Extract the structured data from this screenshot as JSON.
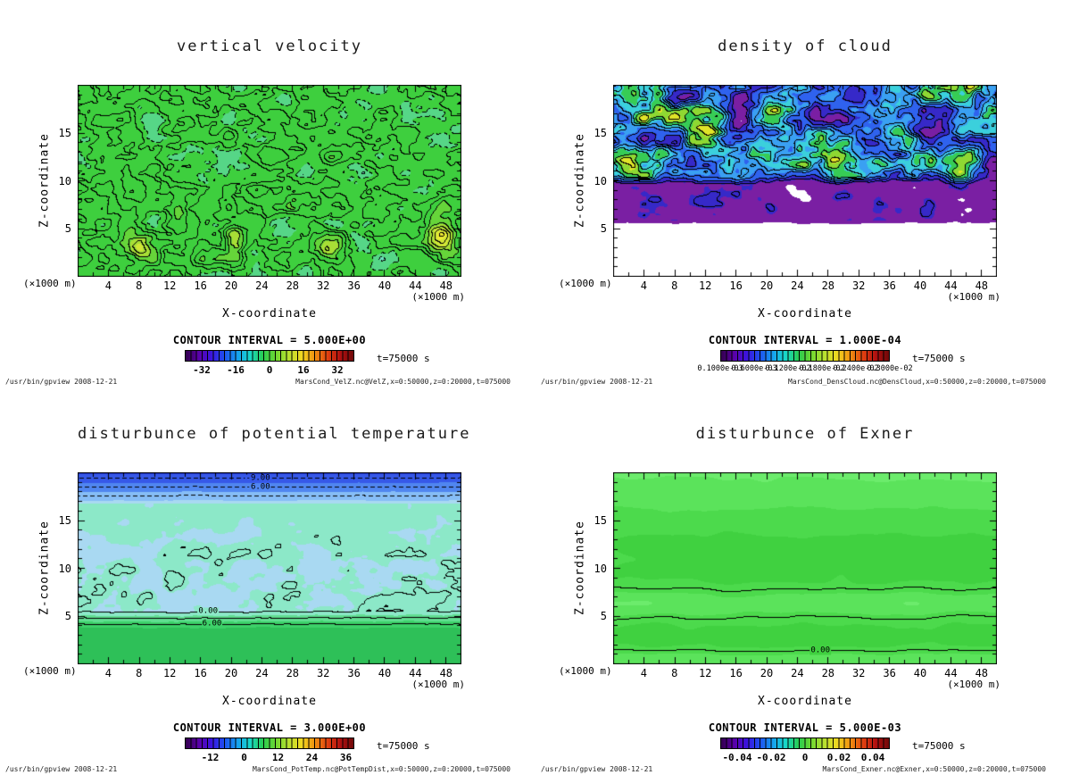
{
  "colorbar_palette": [
    "#33004d",
    "#5a00a8",
    "#3b14e0",
    "#1e50f0",
    "#16a0f0",
    "#18d8c8",
    "#28cc50",
    "#70d830",
    "#b8e030",
    "#f0d820",
    "#f09010",
    "#e04010",
    "#b01010",
    "#700808"
  ],
  "axis_style": {
    "x_minor": 2,
    "x_major": 4,
    "y_minor": 1,
    "y_major": 5
  },
  "chart_data": [
    {
      "type": "contour",
      "title": "vertical velocity",
      "xlabel": "X-coordinate",
      "ylabel": "Z-coordinate",
      "x_unit": "(×1000 m)",
      "y_unit": "(×1000 m)",
      "xlim": [
        0,
        50
      ],
      "ylim": [
        0,
        20
      ],
      "x_ticks": [
        4,
        8,
        12,
        16,
        20,
        24,
        28,
        32,
        36,
        40,
        44,
        48
      ],
      "y_ticks": [
        5,
        10,
        15
      ],
      "grid": false,
      "contour_interval": 5.0,
      "contour_interval_label": "CONTOUR INTERVAL = 5.000E+00",
      "time_label": "t=75000 s",
      "footer_left": "/usr/bin/gpview  2008-12-21",
      "source": "MarsCond_VelZ.nc@VelZ,x=0:50000,z=0:20000,t=075000",
      "value_range_estimate": [
        -35,
        35
      ],
      "field_summary": "Turbulent vertical-velocity field over whole domain, mostly -15..+15 with strong plumes to ~+30 near z=3-4 at x=8, 20, 33, 47; dense contours every 5, dashed where negative",
      "colorbar": {
        "ticks": [
          {
            "label": "-32",
            "pos": 0.1
          },
          {
            "label": "-16",
            "pos": 0.3
          },
          {
            "label": "0",
            "pos": 0.5
          },
          {
            "label": "16",
            "pos": 0.7
          },
          {
            "label": "32",
            "pos": 0.9
          }
        ]
      },
      "contour_labels": [],
      "render": {
        "contour_interval": 5,
        "dash_negative": true,
        "fill_levels": [
          [
            -10,
            "#6fe0c2"
          ],
          [
            -5,
            "#56d687"
          ],
          [
            10,
            "#3ecf3e"
          ],
          [
            16,
            "#66d53a"
          ],
          [
            22,
            "#a8de36"
          ],
          [
            28,
            "#d2e636"
          ],
          [
            999999,
            "#eeea33"
          ]
        ]
      }
    },
    {
      "type": "contour",
      "title": "density of cloud",
      "xlabel": "X-coordinate",
      "ylabel": "Z-coordinate",
      "x_unit": "(×1000 m)",
      "y_unit": "(×1000 m)",
      "xlim": [
        0,
        50
      ],
      "ylim": [
        0,
        20
      ],
      "x_ticks": [
        4,
        8,
        12,
        16,
        20,
        24,
        28,
        32,
        36,
        40,
        44,
        48
      ],
      "y_ticks": [
        5,
        10,
        15
      ],
      "grid": false,
      "contour_interval": 0.0001,
      "contour_interval_label": "CONTOUR INTERVAL = 1.000E-04",
      "time_label": "t=75000 s",
      "footer_left": "/usr/bin/gpview  2008-12-21",
      "source": "MarsCond_DensCloud.nc@DensCloud,x=0:50000,z=0:20000,t=075000",
      "value_range_estimate": [
        0.0001,
        0.003
      ],
      "field_summary": "Cloud density confined to z>5.5: low-density purple band z=6-10, scattered blue/cyan/green high-density cores (up to ~3e-3) between z=10 and 19, white cloud-free elsewhere",
      "colorbar": {
        "ticks": [
          {
            "label": "0.1000e-03",
            "pos": 0.0
          },
          {
            "label": "0.6000e-03",
            "pos": 0.2
          },
          {
            "label": "0.1200e-02",
            "pos": 0.4
          },
          {
            "label": "0.1800e-02",
            "pos": 0.6
          },
          {
            "label": "0.2400e-02",
            "pos": 0.8
          },
          {
            "label": "0.3000e-02",
            "pos": 1.0
          }
        ]
      },
      "contour_labels": [],
      "render": {
        "contour_interval": 0.115,
        "min_draw": 0.17,
        "dash_negative": false,
        "fill_levels": [
          [
            0.055,
            "#ffffff"
          ],
          [
            0.21,
            "#7a1fa3"
          ],
          [
            0.36,
            "#3629c8"
          ],
          [
            0.5,
            "#2f62ee"
          ],
          [
            0.62,
            "#3aa0f2"
          ],
          [
            0.72,
            "#3bd0dc"
          ],
          [
            0.82,
            "#37cc55"
          ],
          [
            0.9,
            "#8fd832"
          ],
          [
            999999,
            "#e0e428"
          ]
        ]
      }
    },
    {
      "type": "contour",
      "title": "disturbunce of potential temperature",
      "xlabel": "X-coordinate",
      "ylabel": "Z-coordinate",
      "x_unit": "(×1000 m)",
      "y_unit": "(×1000 m)",
      "xlim": [
        0,
        50
      ],
      "ylim": [
        0,
        20
      ],
      "x_ticks": [
        4,
        8,
        12,
        16,
        20,
        24,
        28,
        32,
        36,
        40,
        44,
        48
      ],
      "y_ticks": [
        5,
        10,
        15
      ],
      "grid": false,
      "contour_interval": 3.0,
      "contour_interval_label": "CONTOUR INTERVAL = 3.000E+00",
      "time_label": "t=75000 s",
      "footer_left": "/usr/bin/gpview  2008-12-21",
      "source": "MarsCond_PotTemp.nc@PotTempDist,x=0:50000,z=0:20000,t=075000",
      "value_range_estimate": [
        -13,
        8
      ],
      "field_summary": "Horizontally stratified disturbance: -9 and -6 dashed contours near z=18-19.5, near-zero pale interior with small pockets at z=5-9, solid 0.00 and 6.00 contours at z=4-5.5",
      "colorbar": {
        "ticks": [
          {
            "label": "-12",
            "pos": 0.15
          },
          {
            "label": "0",
            "pos": 0.35
          },
          {
            "label": "12",
            "pos": 0.55
          },
          {
            "label": "24",
            "pos": 0.75
          },
          {
            "label": "36",
            "pos": 0.95
          }
        ]
      },
      "contour_labels": [
        {
          "text": "-9.00",
          "fx": 0.47,
          "fy": 0.033,
          "bg": "#3658e8"
        },
        {
          "text": "-6.00",
          "fx": 0.47,
          "fy": 0.079,
          "bg": "#5086f0"
        },
        {
          "text": "0.00",
          "fx": 0.34,
          "fy": 0.727,
          "bg": "#8ce8c8"
        },
        {
          "text": "6.00",
          "fx": 0.35,
          "fy": 0.792,
          "bg": "#3dd169"
        }
      ],
      "render": {
        "contour_interval": 3,
        "dash_negative": true,
        "fill_levels": [
          [
            -10.5,
            "#2439cf"
          ],
          [
            -7.5,
            "#3658e8"
          ],
          [
            -4.5,
            "#5086f0"
          ],
          [
            -1.5,
            "#86bdf6"
          ],
          [
            -0.45,
            "#a9d9f2"
          ],
          [
            1.5,
            "#8ce8c8"
          ],
          [
            4.5,
            "#60dd90"
          ],
          [
            7.5,
            "#3dd169"
          ],
          [
            999999,
            "#2ec058"
          ]
        ]
      }
    },
    {
      "type": "contour",
      "title": "disturbunce of Exner",
      "xlabel": "X-coordinate",
      "ylabel": "Z-coordinate",
      "x_unit": "(×1000 m)",
      "y_unit": "(×1000 m)",
      "xlim": [
        0,
        50
      ],
      "ylim": [
        0,
        20
      ],
      "x_ticks": [
        4,
        8,
        12,
        16,
        20,
        24,
        28,
        32,
        36,
        40,
        44,
        48
      ],
      "y_ticks": [
        5,
        10,
        15
      ],
      "grid": false,
      "contour_interval": 0.005,
      "contour_interval_label": "CONTOUR INTERVAL = 5.000E-03",
      "time_label": "t=75000 s",
      "footer_left": "/usr/bin/gpview  2008-12-21",
      "source": "MarsCond_Exner.nc@Exner,x=0:50000,z=0:20000,t=075000",
      "value_range_estimate": [
        -0.002,
        0.002
      ],
      "field_summary": "Nearly uniform green Exner disturbance; 0.00 contour encloses a weak positive wavy band at z=5-7.5 and runs along z=1.4; faint lighter horizontal bands near top",
      "colorbar": {
        "ticks": [
          {
            "label": "-0.04",
            "pos": 0.1
          },
          {
            "label": "-0.02",
            "pos": 0.3
          },
          {
            "label": "0",
            "pos": 0.5
          },
          {
            "label": "0.02",
            "pos": 0.7
          },
          {
            "label": "0.04",
            "pos": 0.9
          }
        ]
      },
      "contour_labels": [
        {
          "text": "0.00",
          "fx": 0.54,
          "fy": 0.928,
          "bg": "#40d140"
        }
      ],
      "render": {
        "contour_interval": 0.005,
        "dash_negative": true,
        "fill_levels": [
          [
            -0.00012,
            "#40d140"
          ],
          [
            0.00012,
            "#4cda4c"
          ],
          [
            0.00038,
            "#5be35b"
          ],
          [
            999999,
            "#6cec6c"
          ]
        ]
      }
    }
  ]
}
